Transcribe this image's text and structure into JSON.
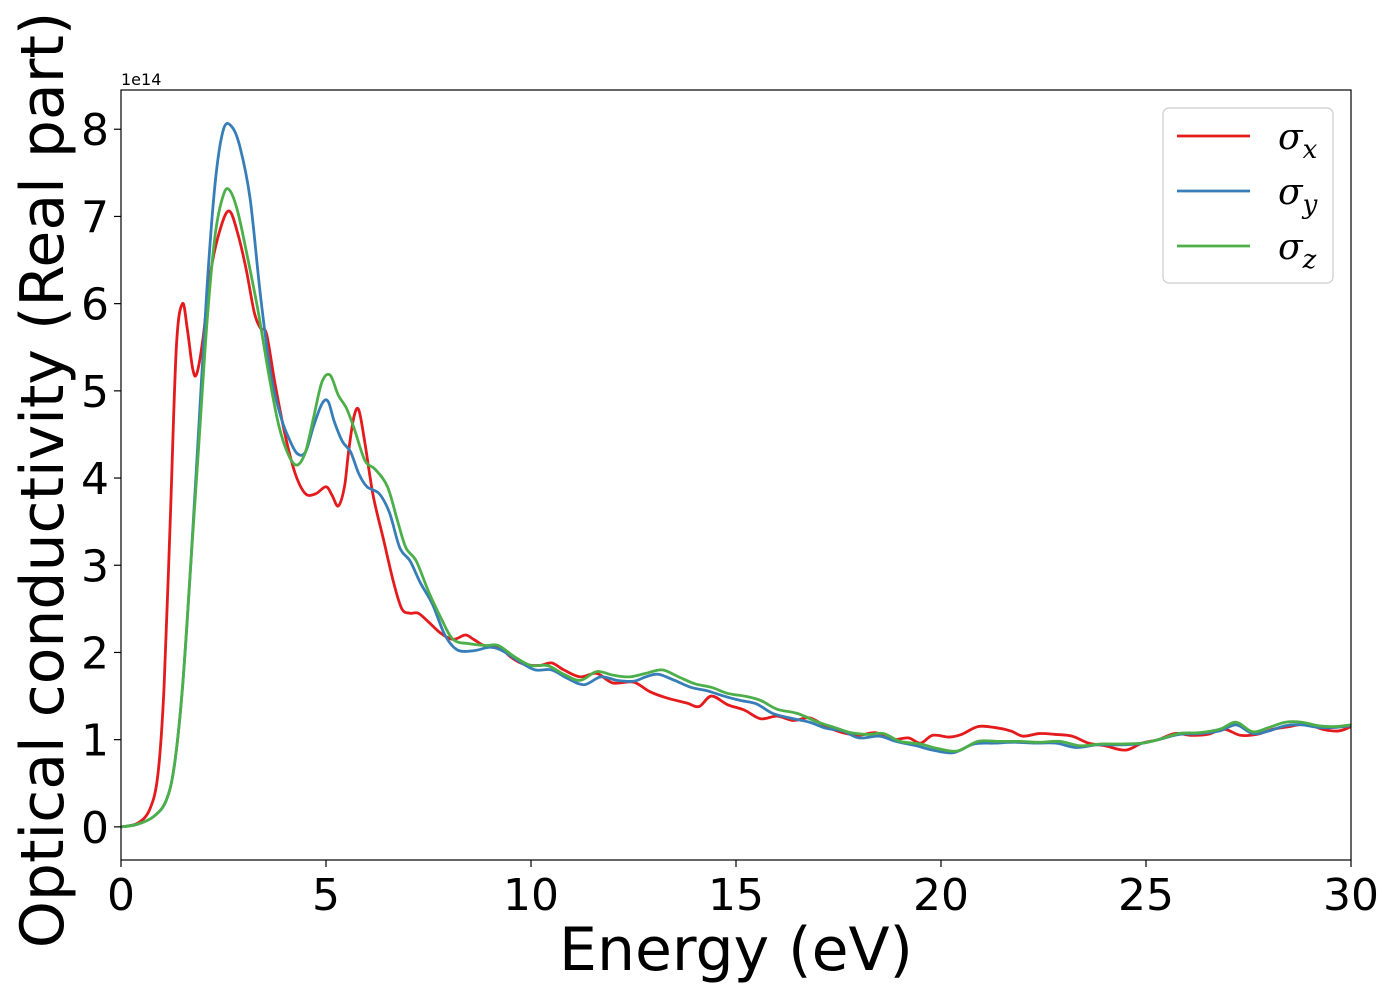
{
  "chart_data": {
    "type": "line",
    "xlabel": "Energy (eV)",
    "ylabel": "Optical conductivity (Real part)",
    "y_offset_text": "1e14",
    "y_scale_factor": 100000000000000.0,
    "xlim": [
      0,
      30
    ],
    "ylim": [
      -0.38,
      8.45
    ],
    "x_ticks": [
      0,
      5,
      10,
      15,
      20,
      25,
      30
    ],
    "y_ticks": [
      0,
      1,
      2,
      3,
      4,
      5,
      6,
      7,
      8
    ],
    "grid": false,
    "legend_position": "top-right",
    "series": [
      {
        "name": "σx",
        "base": "σ",
        "sub": "x",
        "color": "#e41a1c",
        "points": [
          [
            0,
            0
          ],
          [
            0.4,
            0.04
          ],
          [
            0.7,
            0.2
          ],
          [
            0.9,
            0.6
          ],
          [
            1.05,
            1.6
          ],
          [
            1.2,
            3.5
          ],
          [
            1.35,
            5.5
          ],
          [
            1.5,
            6.0
          ],
          [
            1.62,
            5.7
          ],
          [
            1.75,
            5.25
          ],
          [
            1.85,
            5.2
          ],
          [
            2.0,
            5.6
          ],
          [
            2.2,
            6.4
          ],
          [
            2.45,
            6.9
          ],
          [
            2.65,
            7.06
          ],
          [
            2.85,
            6.8
          ],
          [
            3.05,
            6.4
          ],
          [
            3.25,
            5.9
          ],
          [
            3.4,
            5.72
          ],
          [
            3.55,
            5.65
          ],
          [
            3.75,
            5.1
          ],
          [
            4.0,
            4.5
          ],
          [
            4.25,
            4.05
          ],
          [
            4.5,
            3.82
          ],
          [
            4.75,
            3.82
          ],
          [
            5.0,
            3.9
          ],
          [
            5.15,
            3.8
          ],
          [
            5.3,
            3.68
          ],
          [
            5.45,
            3.9
          ],
          [
            5.55,
            4.3
          ],
          [
            5.68,
            4.7
          ],
          [
            5.8,
            4.78
          ],
          [
            5.95,
            4.4
          ],
          [
            6.15,
            3.8
          ],
          [
            6.4,
            3.3
          ],
          [
            6.65,
            2.8
          ],
          [
            6.85,
            2.5
          ],
          [
            7.05,
            2.45
          ],
          [
            7.25,
            2.45
          ],
          [
            7.5,
            2.35
          ],
          [
            7.8,
            2.22
          ],
          [
            8.1,
            2.15
          ],
          [
            8.4,
            2.2
          ],
          [
            8.6,
            2.15
          ],
          [
            8.9,
            2.07
          ],
          [
            9.2,
            2.07
          ],
          [
            9.5,
            1.95
          ],
          [
            9.8,
            1.87
          ],
          [
            10.2,
            1.85
          ],
          [
            10.5,
            1.88
          ],
          [
            10.8,
            1.8
          ],
          [
            11.2,
            1.72
          ],
          [
            11.6,
            1.76
          ],
          [
            12.0,
            1.65
          ],
          [
            12.5,
            1.66
          ],
          [
            12.9,
            1.55
          ],
          [
            13.3,
            1.48
          ],
          [
            13.8,
            1.42
          ],
          [
            14.1,
            1.38
          ],
          [
            14.4,
            1.5
          ],
          [
            14.8,
            1.4
          ],
          [
            15.2,
            1.34
          ],
          [
            15.6,
            1.24
          ],
          [
            16.0,
            1.27
          ],
          [
            16.4,
            1.22
          ],
          [
            16.8,
            1.25
          ],
          [
            17.2,
            1.15
          ],
          [
            17.6,
            1.08
          ],
          [
            18.0,
            1.05
          ],
          [
            18.4,
            1.08
          ],
          [
            18.8,
            1.0
          ],
          [
            19.2,
            1.02
          ],
          [
            19.5,
            0.96
          ],
          [
            19.8,
            1.05
          ],
          [
            20.2,
            1.03
          ],
          [
            20.5,
            1.06
          ],
          [
            20.9,
            1.15
          ],
          [
            21.3,
            1.14
          ],
          [
            21.7,
            1.1
          ],
          [
            22.0,
            1.04
          ],
          [
            22.4,
            1.07
          ],
          [
            22.8,
            1.06
          ],
          [
            23.2,
            1.04
          ],
          [
            23.6,
            0.96
          ],
          [
            24.0,
            0.93
          ],
          [
            24.5,
            0.88
          ],
          [
            24.9,
            0.96
          ],
          [
            25.3,
            1.0
          ],
          [
            25.7,
            1.07
          ],
          [
            26.1,
            1.05
          ],
          [
            26.5,
            1.06
          ],
          [
            26.9,
            1.12
          ],
          [
            27.3,
            1.05
          ],
          [
            27.7,
            1.06
          ],
          [
            28.1,
            1.12
          ],
          [
            28.5,
            1.15
          ],
          [
            28.9,
            1.18
          ],
          [
            29.3,
            1.12
          ],
          [
            29.7,
            1.1
          ],
          [
            30.0,
            1.15
          ]
        ]
      },
      {
        "name": "σy",
        "base": "σ",
        "sub": "y",
        "color": "#377eb8",
        "points": [
          [
            0,
            0
          ],
          [
            0.4,
            0.03
          ],
          [
            0.8,
            0.12
          ],
          [
            1.1,
            0.3
          ],
          [
            1.3,
            0.7
          ],
          [
            1.5,
            1.6
          ],
          [
            1.7,
            3.0
          ],
          [
            1.9,
            4.6
          ],
          [
            2.1,
            6.2
          ],
          [
            2.3,
            7.4
          ],
          [
            2.5,
            8.0
          ],
          [
            2.7,
            8.03
          ],
          [
            2.9,
            7.8
          ],
          [
            3.15,
            7.2
          ],
          [
            3.4,
            6.1
          ],
          [
            3.65,
            5.2
          ],
          [
            3.9,
            4.7
          ],
          [
            4.1,
            4.45
          ],
          [
            4.3,
            4.28
          ],
          [
            4.5,
            4.3
          ],
          [
            4.7,
            4.6
          ],
          [
            4.9,
            4.85
          ],
          [
            5.05,
            4.88
          ],
          [
            5.2,
            4.65
          ],
          [
            5.4,
            4.42
          ],
          [
            5.6,
            4.3
          ],
          [
            5.8,
            4.05
          ],
          [
            6.0,
            3.9
          ],
          [
            6.3,
            3.82
          ],
          [
            6.55,
            3.6
          ],
          [
            6.8,
            3.2
          ],
          [
            7.05,
            3.05
          ],
          [
            7.3,
            2.8
          ],
          [
            7.6,
            2.55
          ],
          [
            7.9,
            2.2
          ],
          [
            8.2,
            2.03
          ],
          [
            8.6,
            2.02
          ],
          [
            9.0,
            2.06
          ],
          [
            9.3,
            2.02
          ],
          [
            9.7,
            1.9
          ],
          [
            10.1,
            1.8
          ],
          [
            10.5,
            1.8
          ],
          [
            10.9,
            1.7
          ],
          [
            11.3,
            1.63
          ],
          [
            11.7,
            1.72
          ],
          [
            12.1,
            1.68
          ],
          [
            12.5,
            1.67
          ],
          [
            12.8,
            1.72
          ],
          [
            13.1,
            1.75
          ],
          [
            13.5,
            1.68
          ],
          [
            13.9,
            1.6
          ],
          [
            14.3,
            1.56
          ],
          [
            14.7,
            1.5
          ],
          [
            15.1,
            1.45
          ],
          [
            15.5,
            1.41
          ],
          [
            15.9,
            1.3
          ],
          [
            16.4,
            1.24
          ],
          [
            16.8,
            1.2
          ],
          [
            17.2,
            1.13
          ],
          [
            17.6,
            1.1
          ],
          [
            18.0,
            1.02
          ],
          [
            18.5,
            1.04
          ],
          [
            18.9,
            0.98
          ],
          [
            19.4,
            0.93
          ],
          [
            19.8,
            0.88
          ],
          [
            20.3,
            0.85
          ],
          [
            20.8,
            0.95
          ],
          [
            21.3,
            0.96
          ],
          [
            21.8,
            0.97
          ],
          [
            22.3,
            0.96
          ],
          [
            22.8,
            0.96
          ],
          [
            23.3,
            0.91
          ],
          [
            23.8,
            0.94
          ],
          [
            24.3,
            0.94
          ],
          [
            24.8,
            0.95
          ],
          [
            25.3,
            1.0
          ],
          [
            25.8,
            1.06
          ],
          [
            26.3,
            1.07
          ],
          [
            26.8,
            1.1
          ],
          [
            27.2,
            1.17
          ],
          [
            27.6,
            1.07
          ],
          [
            28.0,
            1.1
          ],
          [
            28.4,
            1.16
          ],
          [
            28.8,
            1.17
          ],
          [
            29.2,
            1.14
          ],
          [
            29.6,
            1.14
          ],
          [
            30.0,
            1.16
          ]
        ]
      },
      {
        "name": "σz",
        "base": "σ",
        "sub": "z",
        "color": "#4daf4a",
        "points": [
          [
            0,
            0
          ],
          [
            0.4,
            0.03
          ],
          [
            0.8,
            0.12
          ],
          [
            1.1,
            0.3
          ],
          [
            1.3,
            0.7
          ],
          [
            1.5,
            1.6
          ],
          [
            1.7,
            3.0
          ],
          [
            1.9,
            4.4
          ],
          [
            2.1,
            5.8
          ],
          [
            2.3,
            6.8
          ],
          [
            2.5,
            7.25
          ],
          [
            2.65,
            7.3
          ],
          [
            2.85,
            7.05
          ],
          [
            3.1,
            6.5
          ],
          [
            3.35,
            5.9
          ],
          [
            3.6,
            5.2
          ],
          [
            3.85,
            4.6
          ],
          [
            4.1,
            4.25
          ],
          [
            4.3,
            4.15
          ],
          [
            4.5,
            4.3
          ],
          [
            4.7,
            4.7
          ],
          [
            4.9,
            5.1
          ],
          [
            5.1,
            5.18
          ],
          [
            5.3,
            4.95
          ],
          [
            5.5,
            4.8
          ],
          [
            5.7,
            4.55
          ],
          [
            5.95,
            4.2
          ],
          [
            6.2,
            4.1
          ],
          [
            6.5,
            3.9
          ],
          [
            6.75,
            3.5
          ],
          [
            6.95,
            3.2
          ],
          [
            7.2,
            3.05
          ],
          [
            7.5,
            2.7
          ],
          [
            7.8,
            2.4
          ],
          [
            8.1,
            2.15
          ],
          [
            8.5,
            2.1
          ],
          [
            8.9,
            2.08
          ],
          [
            9.2,
            2.08
          ],
          [
            9.6,
            1.95
          ],
          [
            10.0,
            1.85
          ],
          [
            10.4,
            1.85
          ],
          [
            10.8,
            1.75
          ],
          [
            11.2,
            1.68
          ],
          [
            11.6,
            1.78
          ],
          [
            12.0,
            1.74
          ],
          [
            12.4,
            1.72
          ],
          [
            12.8,
            1.76
          ],
          [
            13.2,
            1.8
          ],
          [
            13.6,
            1.72
          ],
          [
            14.0,
            1.64
          ],
          [
            14.4,
            1.6
          ],
          [
            14.8,
            1.53
          ],
          [
            15.2,
            1.5
          ],
          [
            15.6,
            1.45
          ],
          [
            16.0,
            1.35
          ],
          [
            16.5,
            1.3
          ],
          [
            17.0,
            1.2
          ],
          [
            17.4,
            1.14
          ],
          [
            17.8,
            1.08
          ],
          [
            18.2,
            1.06
          ],
          [
            18.6,
            1.07
          ],
          [
            19.0,
            0.98
          ],
          [
            19.5,
            0.95
          ],
          [
            19.9,
            0.9
          ],
          [
            20.4,
            0.87
          ],
          [
            20.9,
            0.98
          ],
          [
            21.4,
            0.98
          ],
          [
            21.9,
            0.98
          ],
          [
            22.4,
            0.97
          ],
          [
            22.9,
            0.98
          ],
          [
            23.4,
            0.93
          ],
          [
            23.9,
            0.95
          ],
          [
            24.4,
            0.95
          ],
          [
            24.9,
            0.96
          ],
          [
            25.3,
            1.0
          ],
          [
            25.8,
            1.07
          ],
          [
            26.3,
            1.08
          ],
          [
            26.8,
            1.12
          ],
          [
            27.2,
            1.2
          ],
          [
            27.6,
            1.09
          ],
          [
            28.0,
            1.14
          ],
          [
            28.4,
            1.2
          ],
          [
            28.8,
            1.2
          ],
          [
            29.2,
            1.16
          ],
          [
            29.6,
            1.15
          ],
          [
            30.0,
            1.17
          ]
        ]
      }
    ]
  }
}
